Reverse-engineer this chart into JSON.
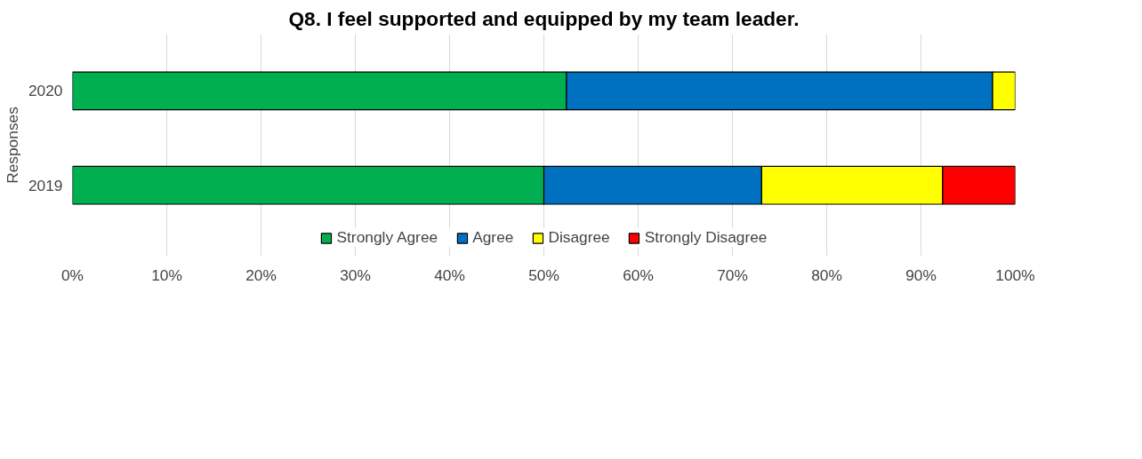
{
  "chart_data": {
    "type": "bar",
    "orientation": "horizontal",
    "stacked": true,
    "title": "Q8. I feel supported and equipped by my team leader.",
    "ylabel": "Responses",
    "categories": [
      "2020",
      "2019"
    ],
    "series": [
      {
        "name": "Strongly Agree",
        "color": "#00b050",
        "values": [
          52.4,
          50
        ]
      },
      {
        "name": "Agree",
        "color": "#0070c0",
        "values": [
          45.2,
          23.1
        ]
      },
      {
        "name": "Disagree",
        "color": "#ffff00",
        "values": [
          2.4,
          19.2
        ]
      },
      {
        "name": "Strongly Disagree",
        "color": "#ff0000",
        "values": [
          null,
          7.7
        ]
      }
    ],
    "xlim": [
      0,
      100
    ],
    "xticks": [
      {
        "value": 0,
        "label": "0%"
      },
      {
        "value": 10,
        "label": "10%"
      },
      {
        "value": 20,
        "label": "20%"
      },
      {
        "value": 30,
        "label": "30%"
      },
      {
        "value": 40,
        "label": "40%"
      },
      {
        "value": 50,
        "label": "50%"
      },
      {
        "value": 60,
        "label": "60%"
      },
      {
        "value": 70,
        "label": "70%"
      },
      {
        "value": 80,
        "label": "80%"
      },
      {
        "value": 90,
        "label": "90%"
      },
      {
        "value": 100,
        "label": "100%"
      }
    ],
    "grid": "x",
    "legend": "bottom"
  }
}
